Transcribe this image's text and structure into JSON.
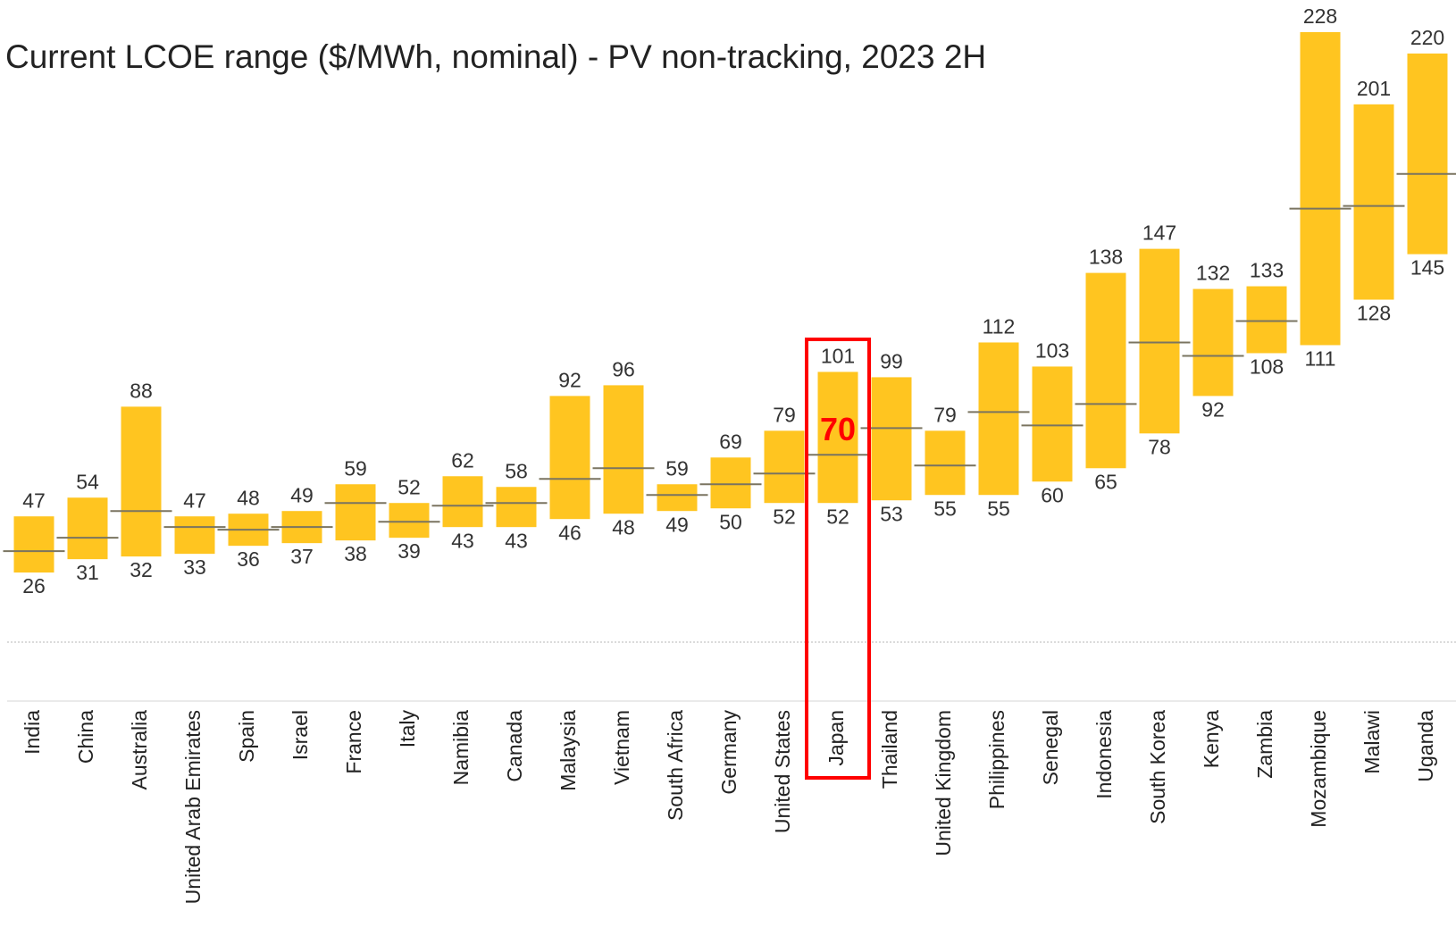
{
  "chart_data": {
    "type": "range",
    "title": "Current LCOE range ($/MWh, nominal) - PV non-tracking, 2023 2H",
    "categories": [
      "India",
      "China",
      "Australia",
      "United Arab Emirates",
      "Spain",
      "Israel",
      "France",
      "Italy",
      "Namibia",
      "Canada",
      "Malaysia",
      "Vietnam",
      "South Africa",
      "Germany",
      "United States",
      "Japan",
      "Thailand",
      "United Kingdom",
      "Philippines",
      "Senegal",
      "Indonesia",
      "South Korea",
      "Kenya",
      "Zambia",
      "Mozambique",
      "Malawi",
      "Uganda"
    ],
    "low": [
      26,
      31,
      32,
      33,
      36,
      37,
      38,
      39,
      43,
      43,
      46,
      48,
      49,
      50,
      52,
      52,
      53,
      55,
      55,
      60,
      65,
      78,
      92,
      108,
      111,
      128,
      145
    ],
    "mid": [
      34,
      39,
      49,
      43,
      42,
      43,
      52,
      45,
      51,
      52,
      61,
      65,
      55,
      59,
      63,
      70,
      80,
      66,
      86,
      81,
      89,
      112,
      107,
      120,
      162,
      163,
      175
    ],
    "high": [
      47,
      54,
      88,
      47,
      48,
      49,
      59,
      52,
      62,
      58,
      92,
      96,
      59,
      69,
      79,
      101,
      99,
      79,
      112,
      103,
      138,
      147,
      132,
      133,
      228,
      201,
      220
    ],
    "color": "#FFC520",
    "mid_color": "#7a7460",
    "ylim": [
      0,
      240
    ],
    "highlight": {
      "category": "Japan",
      "label": "70",
      "color": "#FF0000"
    }
  }
}
